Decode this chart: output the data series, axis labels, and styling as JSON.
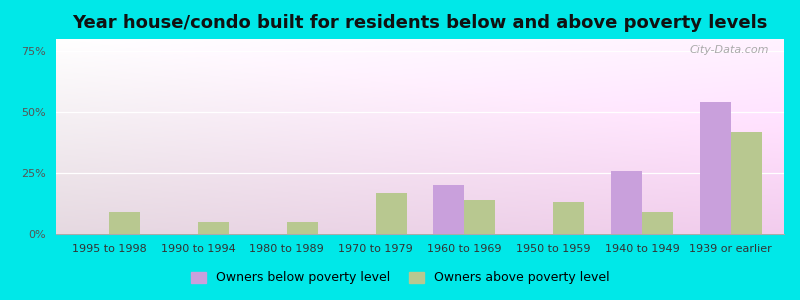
{
  "title": "Year house/condo built for residents below and above poverty levels",
  "categories": [
    "1995 to 1998",
    "1990 to 1994",
    "1980 to 1989",
    "1970 to 1979",
    "1960 to 1969",
    "1950 to 1959",
    "1940 to 1949",
    "1939 or earlier"
  ],
  "below_poverty": [
    0,
    0,
    0,
    0,
    20,
    0,
    26,
    54
  ],
  "above_poverty": [
    9,
    5,
    5,
    17,
    14,
    13,
    9,
    42
  ],
  "below_color": "#c9a0dc",
  "above_color": "#b8c890",
  "ylabel_ticks": [
    0,
    25,
    50,
    75
  ],
  "ylim": [
    0,
    80
  ],
  "outer_bg": "#00e8e8",
  "legend_below": "Owners below poverty level",
  "legend_above": "Owners above poverty level",
  "bar_width": 0.35,
  "title_fontsize": 13,
  "tick_fontsize": 8,
  "legend_fontsize": 9
}
